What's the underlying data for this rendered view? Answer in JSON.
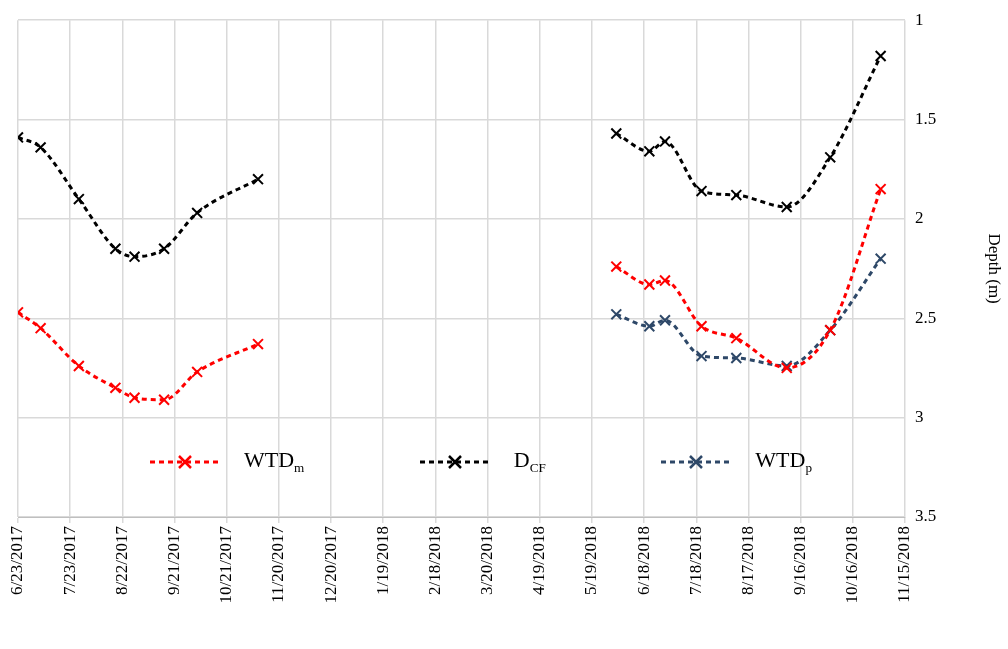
{
  "chart_data": {
    "type": "line",
    "ylabel": "Depth (m)",
    "series": [
      {
        "name": "WTD$_{m}$",
        "color": "#ff0000",
        "line_style": "dashed",
        "x": [
          "2017-06-23",
          "2017-07-06",
          "2017-07-28",
          "2017-08-18",
          "2017-08-29",
          "2017-09-15",
          "2017-10-04",
          "2017-11-08",
          "2018-02-18",
          "2018-06-02",
          "2018-06-21",
          "2018-06-30",
          "2018-07-21",
          "2018-08-10",
          "2018-09-08",
          "2018-10-03",
          "2018-11-01"
        ],
        "values": [
          2.47,
          2.55,
          2.74,
          2.85,
          2.9,
          2.91,
          2.77,
          2.63,
          null,
          2.24,
          2.33,
          2.31,
          2.54,
          2.6,
          2.75,
          2.56,
          1.85
        ]
      },
      {
        "name": "D$_{CF}$",
        "color": "#000000",
        "line_style": "dashed",
        "x": [
          "2017-06-23",
          "2017-07-06",
          "2017-07-28",
          "2017-08-18",
          "2017-08-29",
          "2017-09-15",
          "2017-10-04",
          "2017-11-08",
          "2018-02-18",
          "2018-06-02",
          "2018-06-21",
          "2018-06-30",
          "2018-07-21",
          "2018-08-10",
          "2018-09-08",
          "2018-10-03",
          "2018-11-01"
        ],
        "values": [
          1.59,
          1.64,
          1.9,
          2.15,
          2.19,
          2.15,
          1.97,
          1.8,
          null,
          1.57,
          1.66,
          1.61,
          1.86,
          1.88,
          1.94,
          1.69,
          1.18
        ]
      },
      {
        "name": "WTD$_{p}$",
        "color": "#2e4868",
        "line_style": "dashed",
        "x": [
          "2018-06-02",
          "2018-06-21",
          "2018-06-30",
          "2018-07-21",
          "2018-08-10",
          "2018-09-08",
          "2018-10-03",
          "2018-11-01"
        ],
        "values": [
          2.48,
          2.54,
          2.51,
          2.69,
          2.7,
          2.74,
          2.56,
          2.2
        ]
      }
    ],
    "xlim": [
      "2017-06-23",
      "2018-11-15"
    ],
    "xticks": [
      {
        "value": "2017-06-23",
        "label": "6/23/2017"
      },
      {
        "value": "2017-07-23",
        "label": "7/23/2017"
      },
      {
        "value": "2017-08-22",
        "label": "8/22/2017"
      },
      {
        "value": "2017-09-21",
        "label": "9/21/2017"
      },
      {
        "value": "2017-10-21",
        "label": "10/21/2017"
      },
      {
        "value": "2017-11-20",
        "label": "11/20/2017"
      },
      {
        "value": "2017-12-20",
        "label": "12/20/2017"
      },
      {
        "value": "2018-01-19",
        "label": "1/19/2018"
      },
      {
        "value": "2018-02-18",
        "label": "2/18/2018"
      },
      {
        "value": "2018-03-20",
        "label": "3/20/2018"
      },
      {
        "value": "2018-04-19",
        "label": "4/19/2018"
      },
      {
        "value": "2018-05-19",
        "label": "5/19/2018"
      },
      {
        "value": "2018-06-18",
        "label": "6/18/2018"
      },
      {
        "value": "2018-07-18",
        "label": "7/18/2018"
      },
      {
        "value": "2018-08-17",
        "label": "8/17/2018"
      },
      {
        "value": "2018-09-16",
        "label": "9/16/2018"
      },
      {
        "value": "2018-10-16",
        "label": "10/16/2018"
      },
      {
        "value": "2018-11-15",
        "label": "11/15/2018"
      }
    ],
    "ylim": [
      3.5,
      1
    ],
    "yticks": [
      1,
      1.5,
      2,
      2.5,
      3,
      3.5
    ],
    "grid": true,
    "legend": "bottom",
    "marker": "cross"
  }
}
